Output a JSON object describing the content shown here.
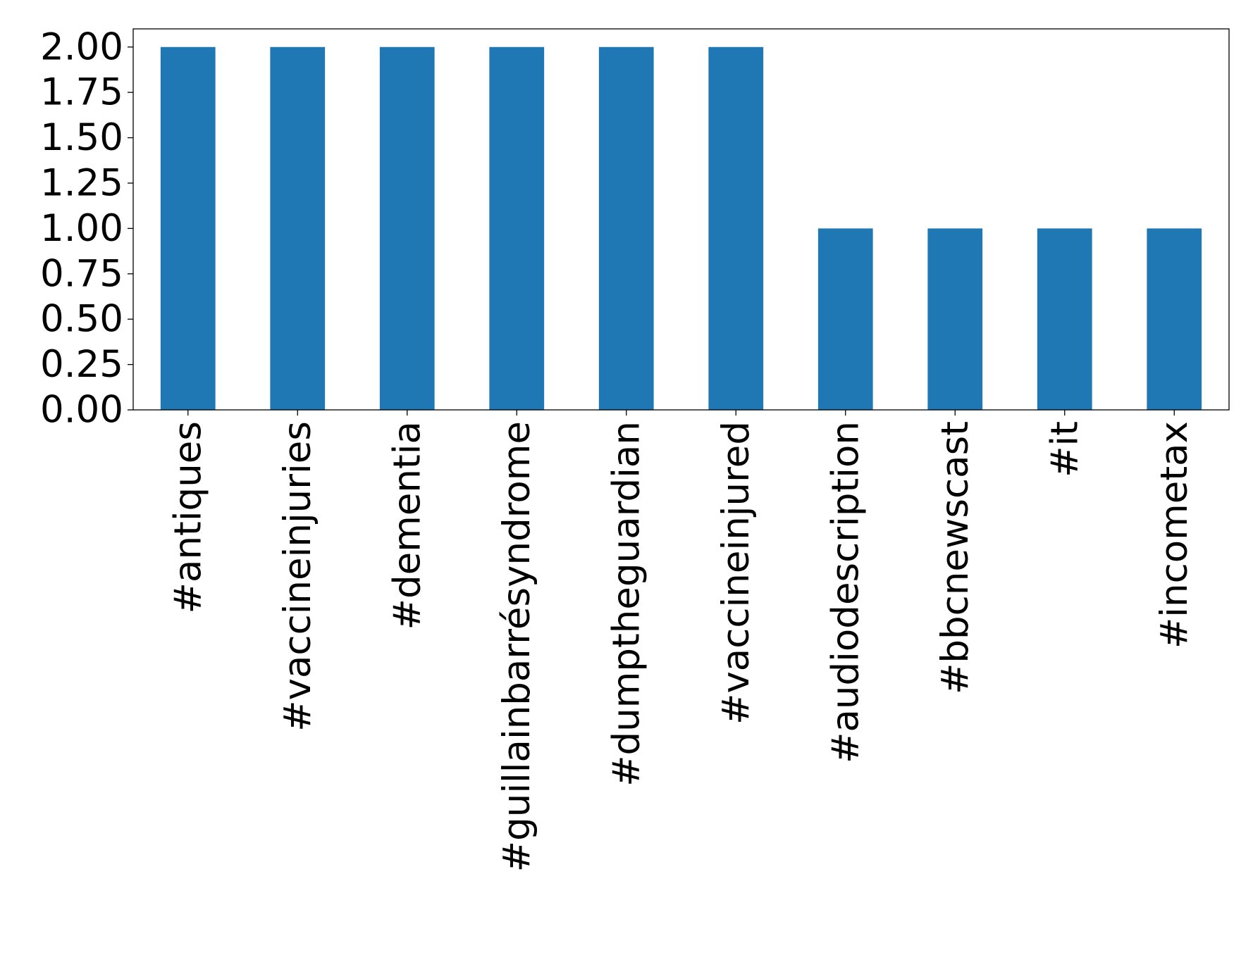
{
  "chart_data": {
    "type": "bar",
    "categories": [
      "#antiques",
      "#vaccineinjuries",
      "#dementia",
      "#guillainbarrésyndrome",
      "#dumptheguardian",
      "#vaccineinjured",
      "#audiodescription",
      "#bbcnewscast",
      "#it",
      "#incometax"
    ],
    "values": [
      2,
      2,
      2,
      2,
      2,
      2,
      1,
      1,
      1,
      1
    ],
    "title": "",
    "xlabel": "",
    "ylabel": "",
    "ylim": [
      0,
      2.1
    ],
    "yticks": [
      "0.00",
      "0.25",
      "0.50",
      "0.75",
      "1.00",
      "1.25",
      "1.50",
      "1.75",
      "2.00"
    ],
    "grid": false,
    "bar_color": "#1f77b4"
  }
}
